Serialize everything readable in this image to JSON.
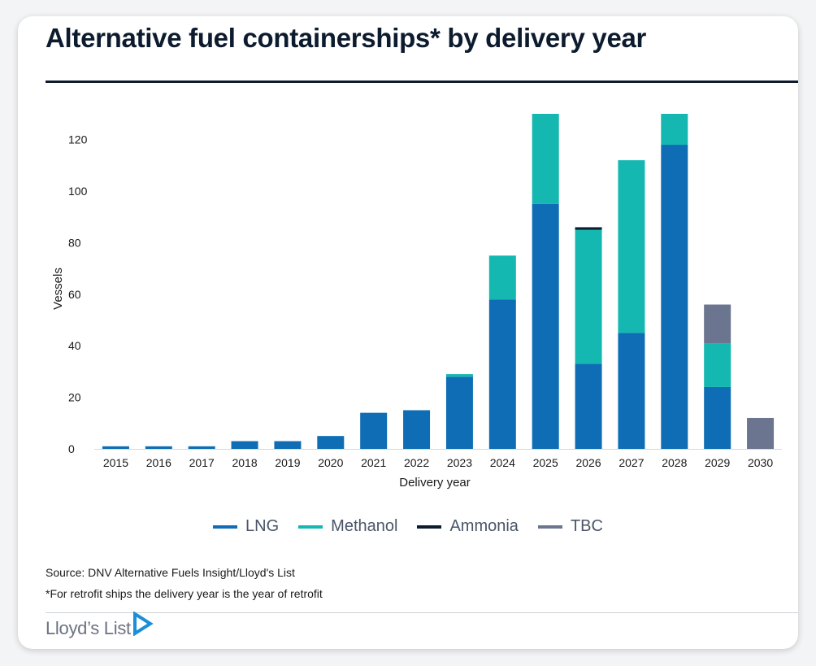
{
  "title": "Alternative fuel containerships* by delivery year",
  "chart_data": {
    "type": "bar",
    "stacked": true,
    "xlabel": "Delivery year",
    "ylabel": "Vessels",
    "ylim": [
      0,
      130
    ],
    "yticks": [
      0,
      20,
      40,
      60,
      80,
      100,
      120
    ],
    "categories": [
      "2015",
      "2016",
      "2017",
      "2018",
      "2019",
      "2020",
      "2021",
      "2022",
      "2023",
      "2024",
      "2025",
      "2026",
      "2027",
      "2028",
      "2029",
      "2030"
    ],
    "series": [
      {
        "name": "LNG",
        "color": "#0e6db5",
        "values": [
          1,
          1,
          1,
          3,
          3,
          5,
          14,
          15,
          28,
          58,
          95,
          33,
          45,
          118,
          24,
          0
        ]
      },
      {
        "name": "Methanol",
        "color": "#14b8b0",
        "values": [
          0,
          0,
          0,
          0,
          0,
          0,
          0,
          0,
          1,
          17,
          35,
          52,
          67,
          12,
          17,
          0
        ]
      },
      {
        "name": "Ammonia",
        "color": "#0d1b2e",
        "values": [
          0,
          0,
          0,
          0,
          0,
          0,
          0,
          0,
          0,
          0,
          0,
          1,
          0,
          0,
          0,
          0
        ]
      },
      {
        "name": "TBC",
        "color": "#6b7590",
        "values": [
          0,
          0,
          0,
          0,
          0,
          0,
          0,
          0,
          0,
          0,
          0,
          0,
          0,
          0,
          15,
          12
        ]
      }
    ],
    "legend_position": "bottom-center"
  },
  "footnotes": {
    "source": "Source: DNV Alternative Fuels Insight/Lloyd's List",
    "note": "*For retrofit ships the delivery year is the year of retrofit"
  },
  "brand": {
    "name": "Lloyd’s List",
    "color": "#6b7280",
    "mark_color": "#1a8fd8"
  }
}
